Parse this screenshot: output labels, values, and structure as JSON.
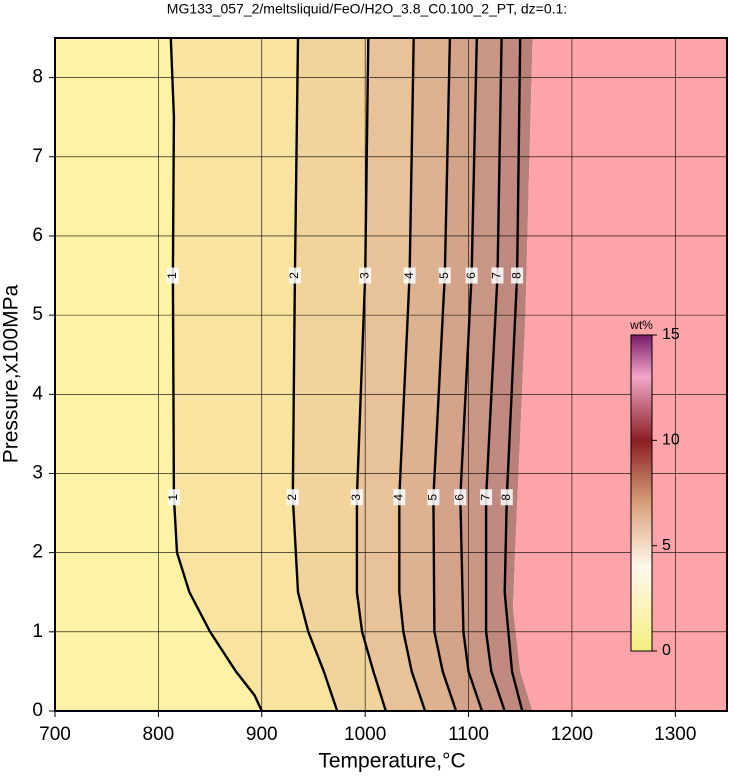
{
  "chart_data": {
    "type": "contour",
    "title": "MG133_057_2/meltsliquid/FeO/H2O_3.8_C0.100_2_PT, dz=0.1:",
    "x_label": "Temperature,°C",
    "y_label": "Pressure,x100MPa",
    "xlim": [
      700,
      1350
    ],
    "xticks": [
      700,
      800,
      900,
      1000,
      1100,
      1200,
      1300
    ],
    "ylim": [
      0,
      8.5
    ],
    "yticks": [
      0,
      1,
      2,
      3,
      4,
      5,
      6,
      7,
      8
    ],
    "grid": true,
    "contours": [
      {
        "level": 1,
        "x": [
          812,
          815,
          814,
          815,
          818,
          830,
          850,
          875,
          893,
          900
        ],
        "y": [
          8.5,
          7.5,
          5.5,
          2.7,
          2,
          1.5,
          1,
          0.5,
          0.2,
          0
        ]
      },
      {
        "level": 2,
        "x": [
          935,
          932,
          930,
          935,
          945,
          960,
          973
        ],
        "y": [
          8.5,
          5.5,
          2.7,
          1.5,
          1,
          0.5,
          0
        ]
      },
      {
        "level": 3,
        "x": [
          1003,
          1000,
          992,
          992,
          997,
          1008,
          1020
        ],
        "y": [
          8.5,
          5.5,
          2.7,
          1.5,
          1,
          0.5,
          0
        ]
      },
      {
        "level": 4,
        "x": [
          1047,
          1043,
          1033,
          1033,
          1037,
          1045,
          1058
        ],
        "y": [
          8.5,
          5.5,
          2.7,
          1.5,
          1,
          0.5,
          0
        ]
      },
      {
        "level": 5,
        "x": [
          1082,
          1077,
          1066,
          1067,
          1075,
          1088
        ],
        "y": [
          8.5,
          5.5,
          2.7,
          1,
          0.5,
          0
        ]
      },
      {
        "level": 6,
        "x": [
          1108,
          1103,
          1092,
          1095,
          1100,
          1113
        ],
        "y": [
          8.5,
          5.5,
          2.7,
          1,
          0.5,
          0
        ]
      },
      {
        "level": 7,
        "x": [
          1132,
          1128,
          1117,
          1117,
          1122,
          1135
        ],
        "y": [
          8.5,
          5.5,
          2.7,
          1,
          0.5,
          0
        ]
      },
      {
        "level": 8,
        "x": [
          1150,
          1147,
          1137,
          1135,
          1142,
          1152
        ],
        "y": [
          8.5,
          5.5,
          2.7,
          1.5,
          0.5,
          0
        ]
      }
    ],
    "boundary": {
      "x": [
        1162,
        1155,
        1145,
        1143,
        1150,
        1162
      ],
      "y": [
        8.5,
        5,
        2,
        1.3,
        0.5,
        0
      ],
      "color": "#fda4a8"
    },
    "colorbar": {
      "label": "wt%",
      "lim": [
        0,
        15
      ],
      "ticks": [
        0,
        5,
        10,
        15
      ],
      "stops": [
        {
          "value": 0,
          "color": "#f4ee80"
        },
        {
          "value": 4,
          "color": "#fff8ec"
        },
        {
          "value": 7,
          "color": "#d9a07a"
        },
        {
          "value": 10,
          "color": "#8a1f25"
        },
        {
          "value": 13,
          "color": "#f2a6c8"
        },
        {
          "value": 15,
          "color": "#7a1a6a"
        }
      ]
    },
    "band_colors": [
      "#fdf2a6",
      "#f8e4a0",
      "#f1d49c",
      "#e8c399",
      "#ddb291",
      "#d3a38a",
      "#c99585",
      "#c08a80",
      "#b88079"
    ]
  }
}
